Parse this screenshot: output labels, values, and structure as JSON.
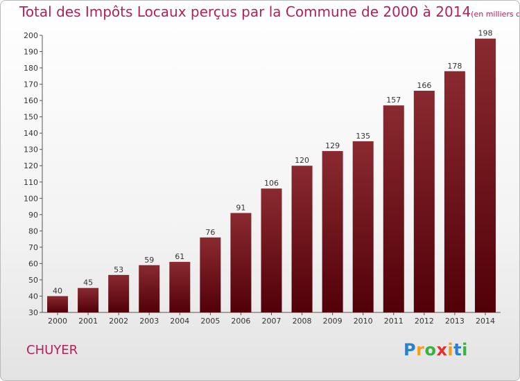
{
  "title": "Total des Impôts Locaux perçus par la Commune de 2000 à 2014",
  "title_unit": "(en milliers d'€)",
  "commune": "CHUYER",
  "logo": {
    "text": "Proxiti"
  },
  "colors": {
    "bar": "#7a1a1f",
    "bar_dark": "#5a0a0e",
    "title": "#b3205a"
  },
  "chart_data": {
    "type": "bar",
    "categories": [
      "2000",
      "2001",
      "2002",
      "2003",
      "2004",
      "2005",
      "2006",
      "2007",
      "2008",
      "2009",
      "2010",
      "2011",
      "2012",
      "2013",
      "2014"
    ],
    "values": [
      40,
      45,
      53,
      59,
      61,
      76,
      91,
      106,
      120,
      129,
      135,
      157,
      166,
      178,
      198
    ],
    "data_labels": [
      "40",
      "45",
      "53",
      "59",
      "61",
      "76",
      "91",
      "106",
      "120",
      "129",
      "135",
      "157",
      "166",
      "178",
      "198"
    ],
    "ylim": [
      30,
      200
    ],
    "yticks": [
      30,
      40,
      50,
      60,
      70,
      80,
      90,
      100,
      110,
      120,
      130,
      140,
      150,
      160,
      170,
      180,
      190,
      200
    ],
    "ytick_labels": [
      "30",
      "40",
      "50",
      "60",
      "70",
      "80",
      "90",
      "100",
      "110",
      "120",
      "130",
      "140",
      "150",
      "160",
      "170",
      "180",
      "190",
      "200"
    ],
    "grid": false,
    "xlabel": "",
    "ylabel": ""
  }
}
